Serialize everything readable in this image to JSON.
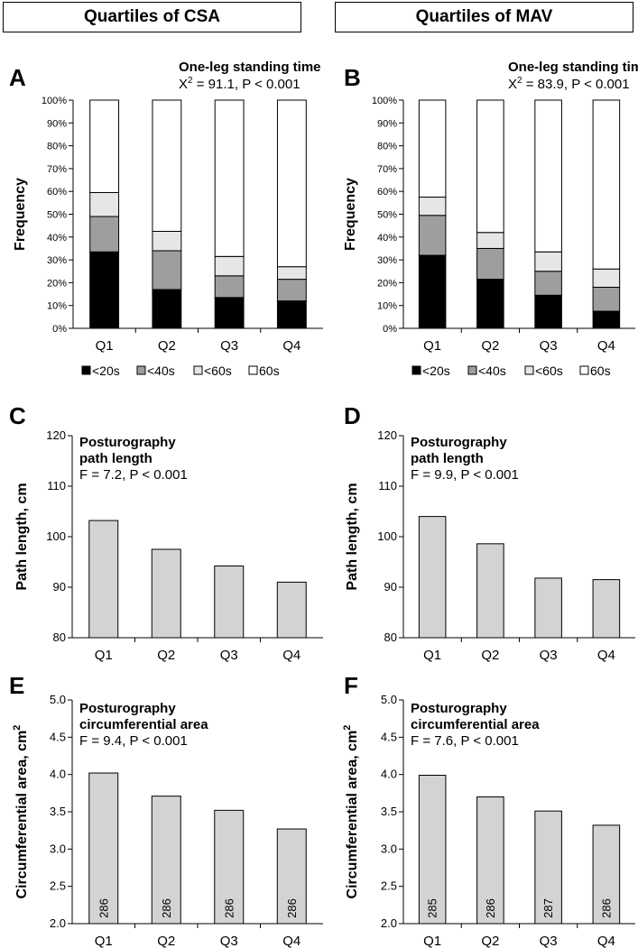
{
  "headers": {
    "left": "Quartiles of CSA",
    "right": "Quartiles of MAV"
  },
  "chart_data": [
    {
      "panel": "A",
      "type": "bar",
      "stacked": true,
      "title": "One-leg standing time",
      "stat_prefix": "X",
      "stat_sup": "2",
      "stat_rest": " = 91.1, P < 0.001",
      "ylabel": "Frequency",
      "ylim": [
        0,
        100
      ],
      "yticks": [
        0,
        10,
        20,
        30,
        40,
        50,
        60,
        70,
        80,
        90,
        100
      ],
      "ytick_labels": [
        "0%",
        "10%",
        "20%",
        "30%",
        "40%",
        "50%",
        "60%",
        "70%",
        "80%",
        "90%",
        "100%"
      ],
      "categories": [
        "Q1",
        "Q2",
        "Q3",
        "Q4"
      ],
      "series": [
        {
          "name": "<20s",
          "color": "#000000",
          "values": [
            33.5,
            17,
            13.5,
            12
          ]
        },
        {
          "name": "<40s",
          "color": "#9e9e9e",
          "values": [
            15.5,
            17,
            9.5,
            9.5
          ]
        },
        {
          "name": "<60s",
          "color": "#e6e6e6",
          "values": [
            10.5,
            8.5,
            8.5,
            5.5
          ]
        },
        {
          "name": "60s",
          "color": "#ffffff",
          "values": [
            40.5,
            57.5,
            68.5,
            73
          ]
        }
      ],
      "legend": [
        "<20s",
        "<40s",
        "<60s",
        "60s"
      ]
    },
    {
      "panel": "B",
      "type": "bar",
      "stacked": true,
      "title": "One-leg standing time",
      "stat_prefix": "X",
      "stat_sup": "2",
      "stat_rest": " = 83.9, P < 0.001",
      "ylabel": "Frequency",
      "ylim": [
        0,
        100
      ],
      "yticks": [
        0,
        10,
        20,
        30,
        40,
        50,
        60,
        70,
        80,
        90,
        100
      ],
      "ytick_labels": [
        "0%",
        "10%",
        "20%",
        "30%",
        "40%",
        "50%",
        "60%",
        "70%",
        "80%",
        "90%",
        "100%"
      ],
      "categories": [
        "Q1",
        "Q2",
        "Q3",
        "Q4"
      ],
      "series": [
        {
          "name": "<20s",
          "color": "#000000",
          "values": [
            32,
            21.5,
            14.5,
            7.5
          ]
        },
        {
          "name": "<40s",
          "color": "#9e9e9e",
          "values": [
            17.5,
            13.5,
            10.5,
            10.5
          ]
        },
        {
          "name": "<60s",
          "color": "#e6e6e6",
          "values": [
            8,
            7,
            8.5,
            8
          ]
        },
        {
          "name": "60s",
          "color": "#ffffff",
          "values": [
            42.5,
            58,
            66.5,
            74
          ]
        }
      ],
      "legend": [
        "<20s",
        "<40s",
        "<60s",
        "60s"
      ]
    },
    {
      "panel": "C",
      "type": "bar",
      "title_lines": [
        "Posturography",
        "path length"
      ],
      "stat": "F = 7.2, P < 0.001",
      "ylabel": "Path length, cm",
      "ylim": [
        80,
        120
      ],
      "yticks": [
        80,
        90,
        100,
        110,
        120
      ],
      "ytick_labels": [
        "80",
        "90",
        "100",
        "110",
        "120"
      ],
      "categories": [
        "Q1",
        "Q2",
        "Q3",
        "Q4"
      ],
      "values": [
        103.2,
        97.5,
        94.2,
        91.0
      ]
    },
    {
      "panel": "D",
      "type": "bar",
      "title_lines": [
        "Posturography",
        "path length"
      ],
      "stat": "F = 9.9, P < 0.001",
      "ylabel": "Path length, cm",
      "ylim": [
        80,
        120
      ],
      "yticks": [
        80,
        90,
        100,
        110,
        120
      ],
      "ytick_labels": [
        "80",
        "90",
        "100",
        "110",
        "120"
      ],
      "categories": [
        "Q1",
        "Q2",
        "Q3",
        "Q4"
      ],
      "values": [
        104.0,
        98.6,
        91.8,
        91.5
      ]
    },
    {
      "panel": "E",
      "type": "bar",
      "title_lines": [
        "Posturography",
        "circumferential area"
      ],
      "stat": "F = 9.4, P < 0.001",
      "ylabel_main": "Circumferential area, cm",
      "ylabel_sup": "2",
      "ylim": [
        2.0,
        5.0
      ],
      "yticks": [
        2.0,
        2.5,
        3.0,
        3.5,
        4.0,
        4.5,
        5.0
      ],
      "ytick_labels": [
        "2.0",
        "2.5",
        "3.0",
        "3.5",
        "4.0",
        "4.5",
        "5.0"
      ],
      "categories": [
        "Q1",
        "Q2",
        "Q3",
        "Q4"
      ],
      "values": [
        4.02,
        3.71,
        3.52,
        3.27
      ],
      "bar_labels": [
        "286",
        "286",
        "286",
        "286"
      ]
    },
    {
      "panel": "F",
      "type": "bar",
      "title_lines": [
        "Posturography",
        "circumferential area"
      ],
      "stat": "F = 7.6, P < 0.001",
      "ylabel_main": "Circumferential area, cm",
      "ylabel_sup": "2",
      "ylim": [
        2.0,
        5.0
      ],
      "yticks": [
        2.0,
        2.5,
        3.0,
        3.5,
        4.0,
        4.5,
        5.0
      ],
      "ytick_labels": [
        "2.0",
        "2.5",
        "3.0",
        "3.5",
        "4.0",
        "4.5",
        "5.0"
      ],
      "categories": [
        "Q1",
        "Q2",
        "Q3",
        "Q4"
      ],
      "values": [
        3.99,
        3.7,
        3.51,
        3.32
      ],
      "bar_labels": [
        "285",
        "286",
        "287",
        "286"
      ]
    }
  ]
}
